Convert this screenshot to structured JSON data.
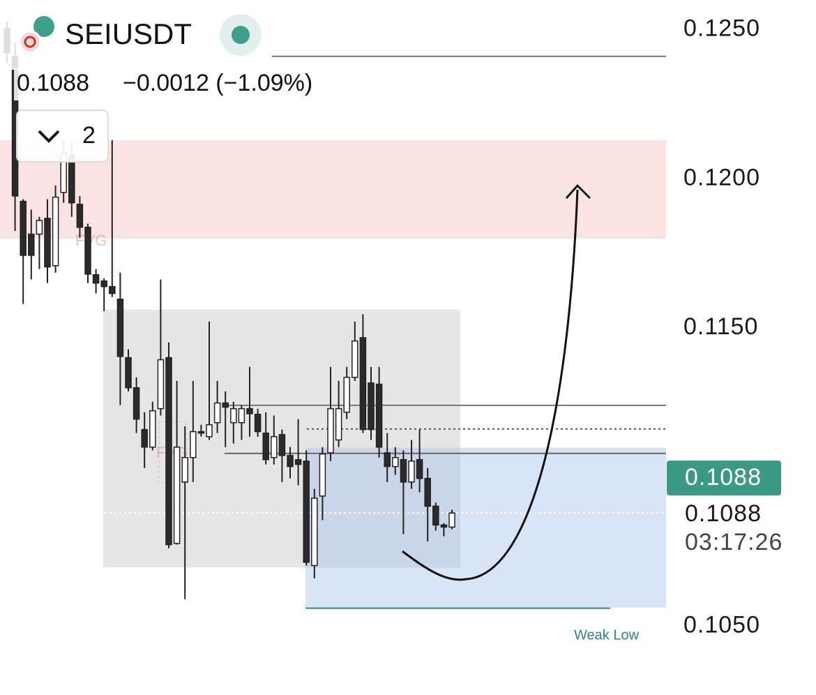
{
  "chart_data": {
    "type": "candlestick",
    "symbol": "SEIUSDT",
    "last_price": 0.1088,
    "change": "−0.0012 (−1.09%)",
    "indicator_count": 2,
    "countdown": "03:17:26",
    "annotations": [
      "FVG",
      "FVG",
      "Weak Low"
    ],
    "ylim": [
      0.1027,
      0.126
    ],
    "yticks": [
      {
        "value": 0.125,
        "label": "0.1250"
      },
      {
        "value": 0.12,
        "label": "0.1200"
      },
      {
        "value": 0.115,
        "label": "0.1150"
      },
      {
        "value": 0.105,
        "label": "0.1050"
      }
    ],
    "bull_color": "#ffffff",
    "bear_color": "#2b2b2b",
    "zones": [
      {
        "top": 0.1213,
        "bottom": 0.118,
        "color": "#f9e3e3"
      },
      {
        "top": 0.11562,
        "bottom": 0.10697,
        "color": "rgba(200,200,200,0.45)"
      },
      {
        "top": 0.11099,
        "bottom": 0.10563,
        "color": "rgba(170,195,235,0.45)"
      }
    ],
    "levels": [
      {
        "value": 0.12411,
        "color": "#777777",
        "style": "solid"
      },
      {
        "value": 0.11241,
        "color": "#777777",
        "style": "solid"
      },
      {
        "value": 0.11162,
        "color": "#555555",
        "style": "dotted"
      },
      {
        "value": 0.1108,
        "color": "#666666",
        "style": "solid"
      },
      {
        "value": 0.10561,
        "color": "#2e8a78",
        "style": "solid"
      }
    ],
    "open": [
      0.12505,
      0.12411,
      0.11925,
      0.11815,
      0.11815,
      0.11868,
      0.11709,
      0.11955,
      0.12079,
      0.11915,
      0.11838,
      0.11679,
      0.11658,
      0.11639,
      0.11597,
      0.11401,
      0.113,
      0.1116,
      0.11101,
      0.1123,
      0.11401,
      0.10778,
      0.10984,
      0.11066,
      0.11153,
      0.11136,
      0.11183,
      0.11249,
      0.11183,
      0.11183,
      0.1123,
      0.11211,
      0.11148,
      0.11066,
      0.11143,
      0.11073,
      0.11059,
      0.11054,
      0.10704,
      0.10937,
      0.11082,
      0.11125,
      0.11218,
      0.11335,
      0.11468,
      0.11316,
      0.11312,
      0.11082,
      0.11036,
      0.11059,
      0.10984,
      0.11059,
      0.10996,
      0.10903,
      0.1084,
      0.10833
    ],
    "high": [
      0.12528,
      0.12458,
      0.11932,
      0.11897,
      0.11873,
      0.11932,
      0.11978,
      0.1213,
      0.1213,
      0.11943,
      0.1185,
      0.11698,
      0.11667,
      0.1213,
      0.11686,
      0.11429,
      0.11335,
      0.11218,
      0.11253,
      0.11663,
      0.11452,
      0.11323,
      0.11171,
      0.11323,
      0.11176,
      0.11522,
      0.11323,
      0.11288,
      0.11253,
      0.11242,
      0.1137,
      0.1123,
      0.11218,
      0.11207,
      0.1116,
      0.11101,
      0.11195,
      0.1109,
      0.10961,
      0.11101,
      0.1137,
      0.11323,
      0.1137,
      0.11522,
      0.11546,
      0.1137,
      0.1137,
      0.11148,
      0.11101,
      0.1109,
      0.11125,
      0.1116,
      0.11031,
      0.10915,
      0.10846,
      0.10891
    ],
    "low": [
      0.12388,
      0.11826,
      0.11581,
      0.11663,
      0.11698,
      0.11651,
      0.11686,
      0.1192,
      0.11873,
      0.11803,
      0.11651,
      0.11616,
      0.11557,
      0.11604,
      0.11242,
      0.11288,
      0.11148,
      0.11031,
      0.1109,
      0.11207,
      0.10762,
      0.10774,
      0.10591,
      0.10984,
      0.11136,
      0.11125,
      0.11148,
      0.11101,
      0.11113,
      0.11125,
      0.11136,
      0.11136,
      0.11043,
      0.11043,
      0.10984,
      0.10996,
      0.10973,
      0.10704,
      0.10661,
      0.10856,
      0.11054,
      0.11101,
      0.11195,
      0.11323,
      0.11148,
      0.11125,
      0.11066,
      0.10984,
      0.11008,
      0.10809,
      0.10961,
      0.10949,
      0.10785,
      0.10821,
      0.10802,
      0.10826
    ],
    "close": [
      0.12423,
      0.11943,
      0.11744,
      0.11744,
      0.11861,
      0.11705,
      0.11939,
      0.12088,
      0.1192,
      0.11838,
      0.11681,
      0.11651,
      0.11639,
      0.11616,
      0.11405,
      0.113,
      0.11195,
      0.11101,
      0.11223,
      0.11394,
      0.10774,
      0.11101,
      0.11066,
      0.11153,
      0.11148,
      0.11176,
      0.11249,
      0.11235,
      0.1123,
      0.1123,
      0.11213,
      0.11153,
      0.11059,
      0.11136,
      0.11073,
      0.11036,
      0.11043,
      0.10715,
      0.1093,
      0.11078,
      0.1123,
      0.1123,
      0.11335,
      0.11457,
      0.1116,
      0.1116,
      0.11101,
      0.11036,
      0.11066,
      0.10984,
      0.11054,
      0.10996,
      0.10903,
      0.1084,
      0.10833,
      0.1088
    ]
  }
}
